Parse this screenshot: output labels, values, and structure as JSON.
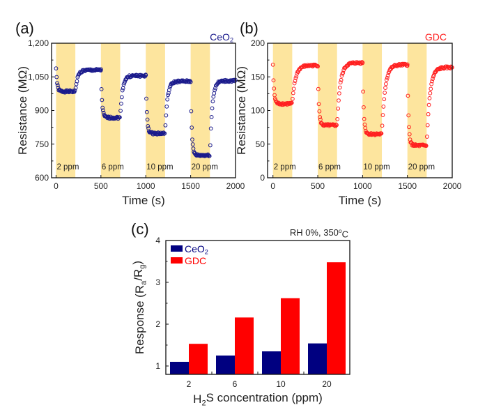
{
  "chart_data": [
    {
      "type": "scatter",
      "panel_label": "(a)",
      "title": "CeO2",
      "title_parts": [
        {
          "t": "CeO"
        },
        {
          "t": "2",
          "sub": true
        }
      ],
      "xlabel": "Time (s)",
      "ylabel": "Resistance (MΩ)",
      "xlim": [
        -50,
        2000
      ],
      "ylim": [
        600,
        1200
      ],
      "xticks": [
        0,
        500,
        1000,
        1500,
        2000
      ],
      "xtick_labels": [
        "0",
        "500",
        "1000",
        "1500",
        "2000"
      ],
      "yticks": [
        600,
        750,
        900,
        1050,
        1200
      ],
      "ytick_labels": [
        "600",
        "750",
        "900",
        "1,050",
        "1,200"
      ],
      "color": "#1a1a8c",
      "shade_color": "#fde59e",
      "initial_baseline": 1090,
      "cycles": [
        {
          "label": "2 ppm",
          "gas_on": 0,
          "gas_off": 215,
          "response_level": 985,
          "recovered_level": 1080
        },
        {
          "label": "6 ppm",
          "gas_on": 500,
          "gas_off": 715,
          "response_level": 868,
          "recovered_level": 1055
        },
        {
          "label": "10 ppm",
          "gas_on": 1000,
          "gas_off": 1215,
          "response_level": 798,
          "recovered_level": 1030
        },
        {
          "label": "20 ppm",
          "gas_on": 1500,
          "gas_off": 1715,
          "response_level": 700,
          "recovered_level": 1032
        }
      ],
      "response_tau_s": 12,
      "recovery_tau_s": 25
    },
    {
      "type": "scatter",
      "panel_label": "(b)",
      "title": "GDC",
      "title_parts": [
        {
          "t": "GDC"
        }
      ],
      "xlabel": "Time (s)",
      "ylabel": "Resistance (MΩ)",
      "xlim": [
        -60,
        2000
      ],
      "ylim": [
        0,
        200
      ],
      "xticks": [
        0,
        500,
        1000,
        1500,
        2000
      ],
      "xtick_labels": [
        "0",
        "500",
        "1000",
        "1500",
        "2000"
      ],
      "yticks": [
        0,
        50,
        100,
        150,
        200
      ],
      "ytick_labels": [
        "0",
        "50",
        "100",
        "150",
        "200"
      ],
      "color": "#ff2020",
      "shade_color": "#fde59e",
      "initial_baseline": 168,
      "cycles": [
        {
          "label": "2 ppm",
          "gas_on": 0,
          "gas_off": 215,
          "response_level": 110,
          "recovered_level": 167
        },
        {
          "label": "6 ppm",
          "gas_on": 500,
          "gas_off": 715,
          "response_level": 78,
          "recovered_level": 171
        },
        {
          "label": "10 ppm",
          "gas_on": 1000,
          "gas_off": 1215,
          "response_level": 65,
          "recovered_level": 168
        },
        {
          "label": "20 ppm",
          "gas_on": 1500,
          "gas_off": 1715,
          "response_level": 48,
          "recovered_level": 164
        }
      ],
      "response_tau_s": 12,
      "recovery_tau_s": 35
    },
    {
      "type": "bar",
      "panel_label": "(c)",
      "annotation_parts": [
        {
          "t": "RH 0%, 350"
        },
        {
          "t": "o",
          "sup": true
        },
        {
          "t": "C"
        }
      ],
      "annotation": "RH 0%, 350oC",
      "xlabel": "H2S concentration (ppm)",
      "xlabel_parts": [
        {
          "t": "H"
        },
        {
          "t": "2",
          "sub": true
        },
        {
          "t": "S concentration (ppm)"
        }
      ],
      "ylabel": "Response (Ra/Rg)",
      "ylabel_parts": [
        {
          "t": "Response (R"
        },
        {
          "t": "a",
          "sub": true
        },
        {
          "t": "/R"
        },
        {
          "t": "g",
          "sub": true
        },
        {
          "t": ")"
        }
      ],
      "categories": [
        "2",
        "6",
        "10",
        "20"
      ],
      "ylim": [
        0.8,
        4
      ],
      "yticks": [
        1,
        2,
        3,
        4
      ],
      "ytick_labels": [
        "1",
        "2",
        "3",
        "4"
      ],
      "legend_position": "top-left",
      "series": [
        {
          "name": "CeO2",
          "name_parts": [
            {
              "t": "CeO"
            },
            {
              "t": "2",
              "sub": true
            }
          ],
          "color": "#000080",
          "values": [
            1.1,
            1.25,
            1.35,
            1.54
          ]
        },
        {
          "name": "GDC",
          "name_parts": [
            {
              "t": "GDC"
            }
          ],
          "color": "#ff0000",
          "values": [
            1.53,
            2.16,
            2.62,
            3.48
          ]
        }
      ]
    }
  ]
}
